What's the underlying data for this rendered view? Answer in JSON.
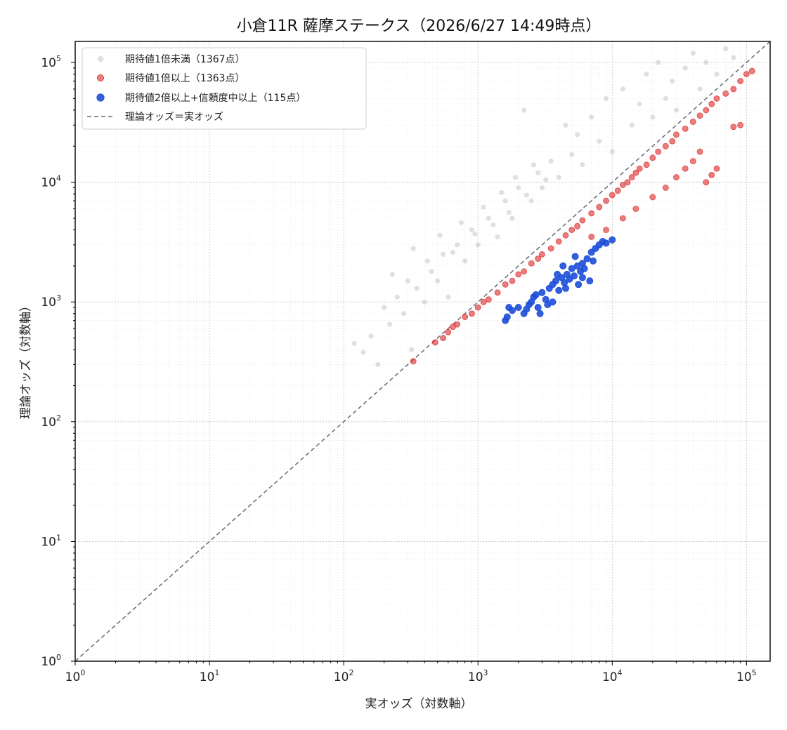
{
  "chart_data": {
    "type": "scatter",
    "title": "小倉11R 薩摩ステークス（2026/6/27 14:49時点）",
    "xlabel": "実オッズ（対数軸）",
    "ylabel": "理論オッズ（対数軸）",
    "xscale": "log",
    "yscale": "log",
    "xlim": [
      1,
      150000
    ],
    "ylim": [
      1,
      150000
    ],
    "grid": true,
    "legend_position": "upper-left",
    "tick_labels": {
      "x": [
        {
          "base": "10",
          "exp": "0",
          "value": 1
        },
        {
          "base": "10",
          "exp": "1",
          "value": 10
        },
        {
          "base": "10",
          "exp": "2",
          "value": 100
        },
        {
          "base": "10",
          "exp": "3",
          "value": 1000
        },
        {
          "base": "10",
          "exp": "4",
          "value": 10000
        },
        {
          "base": "10",
          "exp": "5",
          "value": 100000
        }
      ],
      "y": [
        {
          "base": "10",
          "exp": "0",
          "value": 1
        },
        {
          "base": "10",
          "exp": "1",
          "value": 10
        },
        {
          "base": "10",
          "exp": "2",
          "value": 100
        },
        {
          "base": "10",
          "exp": "3",
          "value": 1000
        },
        {
          "base": "10",
          "exp": "4",
          "value": 10000
        },
        {
          "base": "10",
          "exp": "5",
          "value": 100000
        }
      ]
    },
    "series": [
      {
        "name": "期待値1倍未満（1367点）",
        "color": "#a3a7b0",
        "marker": "circle",
        "points": [
          [
            120,
            450
          ],
          [
            140,
            380
          ],
          [
            160,
            520
          ],
          [
            180,
            300
          ],
          [
            200,
            900
          ],
          [
            220,
            650
          ],
          [
            250,
            1100
          ],
          [
            280,
            800
          ],
          [
            300,
            1500
          ],
          [
            320,
            400
          ],
          [
            350,
            1300
          ],
          [
            400,
            1000
          ],
          [
            450,
            1800
          ],
          [
            500,
            1500
          ],
          [
            550,
            2500
          ],
          [
            600,
            1100
          ],
          [
            700,
            3000
          ],
          [
            800,
            2200
          ],
          [
            900,
            4000
          ],
          [
            1000,
            3000
          ],
          [
            1200,
            5000
          ],
          [
            1400,
            3500
          ],
          [
            1600,
            7000
          ],
          [
            1800,
            5000
          ],
          [
            2000,
            9000
          ],
          [
            2200,
            40000
          ],
          [
            2500,
            7000
          ],
          [
            2800,
            12000
          ],
          [
            3000,
            9000
          ],
          [
            3500,
            15000
          ],
          [
            4000,
            11000
          ],
          [
            4500,
            30000
          ],
          [
            5000,
            17000
          ],
          [
            5500,
            25000
          ],
          [
            6000,
            14000
          ],
          [
            7000,
            35000
          ],
          [
            8000,
            22000
          ],
          [
            9000,
            50000
          ],
          [
            10000,
            18000
          ],
          [
            12000,
            60000
          ],
          [
            14000,
            30000
          ],
          [
            16000,
            45000
          ],
          [
            18000,
            80000
          ],
          [
            20000,
            35000
          ],
          [
            22000,
            100000
          ],
          [
            25000,
            50000
          ],
          [
            28000,
            70000
          ],
          [
            30000,
            40000
          ],
          [
            35000,
            90000
          ],
          [
            40000,
            120000
          ],
          [
            45000,
            60000
          ],
          [
            50000,
            100000
          ],
          [
            60000,
            80000
          ],
          [
            70000,
            130000
          ],
          [
            80000,
            110000
          ],
          [
            230,
            1700
          ],
          [
            330,
            2800
          ],
          [
            420,
            2200
          ],
          [
            520,
            3600
          ],
          [
            650,
            2600
          ],
          [
            750,
            4600
          ],
          [
            950,
            3700
          ],
          [
            1100,
            6200
          ],
          [
            1300,
            4400
          ],
          [
            1500,
            8200
          ],
          [
            1700,
            5600
          ],
          [
            1900,
            11000
          ],
          [
            2300,
            7800
          ],
          [
            2600,
            14000
          ],
          [
            3200,
            10500
          ]
        ]
      },
      {
        "name": "期待値1倍以上（1363点）",
        "color": "#dc2626",
        "marker": "circle",
        "points": [
          [
            330,
            320
          ],
          [
            480,
            460
          ],
          [
            550,
            500
          ],
          [
            600,
            560
          ],
          [
            650,
            620
          ],
          [
            700,
            650
          ],
          [
            800,
            750
          ],
          [
            900,
            800
          ],
          [
            1000,
            900
          ],
          [
            1100,
            1000
          ],
          [
            1200,
            1050
          ],
          [
            1400,
            1200
          ],
          [
            1600,
            1400
          ],
          [
            1800,
            1500
          ],
          [
            2000,
            1700
          ],
          [
            2200,
            1800
          ],
          [
            2500,
            2100
          ],
          [
            2800,
            2300
          ],
          [
            3000,
            2500
          ],
          [
            3500,
            2800
          ],
          [
            4000,
            3200
          ],
          [
            4500,
            3600
          ],
          [
            5000,
            4000
          ],
          [
            5500,
            4300
          ],
          [
            6000,
            4800
          ],
          [
            7000,
            5500
          ],
          [
            8000,
            6200
          ],
          [
            9000,
            7000
          ],
          [
            10000,
            7800
          ],
          [
            11000,
            8500
          ],
          [
            12000,
            9500
          ],
          [
            13000,
            10000
          ],
          [
            14000,
            11000
          ],
          [
            15000,
            12000
          ],
          [
            16000,
            13000
          ],
          [
            18000,
            14000
          ],
          [
            20000,
            16000
          ],
          [
            22000,
            18000
          ],
          [
            25000,
            20000
          ],
          [
            28000,
            22000
          ],
          [
            30000,
            25000
          ],
          [
            35000,
            28000
          ],
          [
            40000,
            32000
          ],
          [
            45000,
            36000
          ],
          [
            50000,
            40000
          ],
          [
            55000,
            45000
          ],
          [
            60000,
            50000
          ],
          [
            70000,
            55000
          ],
          [
            80000,
            60000
          ],
          [
            90000,
            70000
          ],
          [
            100000,
            80000
          ],
          [
            110000,
            85000
          ],
          [
            7000,
            3500
          ],
          [
            9000,
            4000
          ],
          [
            12000,
            5000
          ],
          [
            15000,
            6000
          ],
          [
            20000,
            7500
          ],
          [
            25000,
            9000
          ],
          [
            30000,
            11000
          ],
          [
            35000,
            13000
          ],
          [
            40000,
            15000
          ],
          [
            45000,
            18000
          ],
          [
            50000,
            10000
          ],
          [
            55000,
            11500
          ],
          [
            60000,
            13000
          ],
          [
            80000,
            29000
          ],
          [
            90000,
            30000
          ]
        ]
      },
      {
        "name": "期待値2倍以上+信頼度中以上（115点）",
        "color": "#1d4ed8",
        "marker": "circle",
        "points": [
          [
            1600,
            700
          ],
          [
            1650,
            750
          ],
          [
            1700,
            900
          ],
          [
            1800,
            850
          ],
          [
            2000,
            900
          ],
          [
            2200,
            800
          ],
          [
            2400,
            950
          ],
          [
            2500,
            1000
          ],
          [
            2600,
            1100
          ],
          [
            2800,
            900
          ],
          [
            3000,
            1200
          ],
          [
            3200,
            1050
          ],
          [
            3400,
            1300
          ],
          [
            3600,
            1400
          ],
          [
            3800,
            1500
          ],
          [
            4000,
            1250
          ],
          [
            4200,
            1600
          ],
          [
            4400,
            1450
          ],
          [
            4600,
            1700
          ],
          [
            4800,
            1550
          ],
          [
            5000,
            1900
          ],
          [
            5200,
            1650
          ],
          [
            5500,
            2000
          ],
          [
            5800,
            1800
          ],
          [
            6000,
            2100
          ],
          [
            6200,
            1900
          ],
          [
            6500,
            2300
          ],
          [
            7000,
            2600
          ],
          [
            7500,
            2800
          ],
          [
            8000,
            3000
          ],
          [
            8500,
            3200
          ],
          [
            9000,
            3100
          ],
          [
            10000,
            3300
          ],
          [
            3300,
            950
          ],
          [
            2900,
            800
          ],
          [
            6000,
            1600
          ],
          [
            4500,
            1300
          ],
          [
            7200,
            2200
          ],
          [
            3900,
            1700
          ],
          [
            5300,
            2400
          ],
          [
            2700,
            1150
          ],
          [
            3600,
            1000
          ],
          [
            4300,
            2000
          ],
          [
            2300,
            870
          ],
          [
            6800,
            1500
          ],
          [
            5600,
            1400
          ]
        ]
      }
    ],
    "reference_line": {
      "name": "理論オッズ＝実オッズ",
      "color": "#666a75",
      "style": "dashed",
      "points": [
        [
          1,
          1
        ],
        [
          150000,
          150000
        ]
      ]
    }
  }
}
